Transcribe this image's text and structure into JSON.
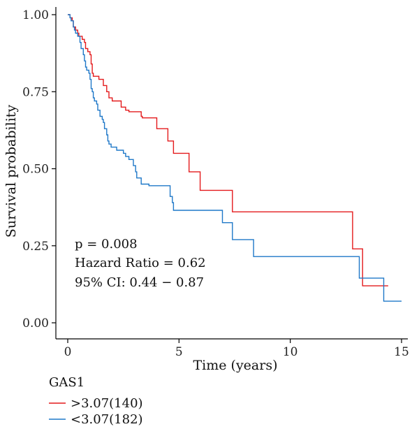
{
  "chart_data": {
    "type": "line",
    "title": "",
    "xlabel": "Time (years)",
    "ylabel": "Survival probability",
    "xlim": [
      0,
      15
    ],
    "ylim": [
      0,
      1
    ],
    "xticks": [
      0,
      5,
      10,
      15
    ],
    "yticks": [
      0.0,
      0.25,
      0.5,
      0.75,
      1.0
    ],
    "grid": false,
    "legend": {
      "title": "GAS1",
      "position": "bottom-left"
    },
    "annotations": [
      "p = 0.008",
      "Hazard Ratio = 0.62",
      "95% CI: 0.44 − 0.87"
    ],
    "series": [
      {
        "name": ">3.07(140)",
        "color": "#e41a1c",
        "step_points": [
          [
            0.0,
            1.0
          ],
          [
            0.1,
            0.99
          ],
          [
            0.2,
            0.98
          ],
          [
            0.25,
            0.96
          ],
          [
            0.35,
            0.95
          ],
          [
            0.45,
            0.94
          ],
          [
            0.5,
            0.93
          ],
          [
            0.65,
            0.92
          ],
          [
            0.75,
            0.91
          ],
          [
            0.8,
            0.89
          ],
          [
            0.9,
            0.88
          ],
          [
            1.0,
            0.87
          ],
          [
            1.05,
            0.84
          ],
          [
            1.1,
            0.81
          ],
          [
            1.15,
            0.8
          ],
          [
            1.4,
            0.79
          ],
          [
            1.6,
            0.77
          ],
          [
            1.75,
            0.75
          ],
          [
            1.85,
            0.73
          ],
          [
            2.0,
            0.72
          ],
          [
            2.4,
            0.7
          ],
          [
            2.6,
            0.69
          ],
          [
            2.75,
            0.685
          ],
          [
            3.3,
            0.67
          ],
          [
            3.35,
            0.665
          ],
          [
            4.0,
            0.63
          ],
          [
            4.5,
            0.59
          ],
          [
            4.75,
            0.55
          ],
          [
            5.45,
            0.49
          ],
          [
            5.95,
            0.43
          ],
          [
            7.4,
            0.36
          ],
          [
            12.8,
            0.24
          ],
          [
            13.25,
            0.12
          ],
          [
            14.4,
            0.12
          ]
        ]
      },
      {
        "name": "<3.07(182)",
        "color": "#1f78c8",
        "step_points": [
          [
            0.0,
            1.0
          ],
          [
            0.1,
            0.99
          ],
          [
            0.15,
            0.98
          ],
          [
            0.25,
            0.96
          ],
          [
            0.3,
            0.95
          ],
          [
            0.35,
            0.94
          ],
          [
            0.45,
            0.93
          ],
          [
            0.55,
            0.91
          ],
          [
            0.6,
            0.89
          ],
          [
            0.7,
            0.87
          ],
          [
            0.75,
            0.85
          ],
          [
            0.8,
            0.83
          ],
          [
            0.85,
            0.82
          ],
          [
            0.95,
            0.81
          ],
          [
            1.0,
            0.79
          ],
          [
            1.05,
            0.76
          ],
          [
            1.1,
            0.75
          ],
          [
            1.15,
            0.73
          ],
          [
            1.2,
            0.72
          ],
          [
            1.3,
            0.71
          ],
          [
            1.35,
            0.69
          ],
          [
            1.45,
            0.67
          ],
          [
            1.55,
            0.66
          ],
          [
            1.6,
            0.65
          ],
          [
            1.65,
            0.63
          ],
          [
            1.75,
            0.61
          ],
          [
            1.8,
            0.59
          ],
          [
            1.85,
            0.58
          ],
          [
            1.95,
            0.57
          ],
          [
            2.2,
            0.56
          ],
          [
            2.5,
            0.55
          ],
          [
            2.6,
            0.54
          ],
          [
            2.75,
            0.53
          ],
          [
            2.95,
            0.51
          ],
          [
            3.05,
            0.49
          ],
          [
            3.1,
            0.47
          ],
          [
            3.3,
            0.45
          ],
          [
            3.65,
            0.445
          ],
          [
            4.6,
            0.41
          ],
          [
            4.7,
            0.39
          ],
          [
            4.75,
            0.365
          ],
          [
            6.95,
            0.325
          ],
          [
            7.4,
            0.27
          ],
          [
            8.35,
            0.215
          ],
          [
            13.1,
            0.145
          ],
          [
            14.2,
            0.07
          ],
          [
            15.0,
            0.07
          ]
        ]
      }
    ]
  }
}
